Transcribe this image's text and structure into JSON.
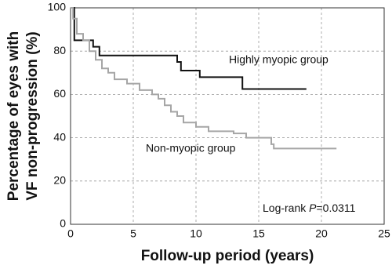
{
  "chart_data": {
    "type": "step",
    "xlabel": "Follow-up period (years)",
    "ylabel": [
      "Percentage of eyes with",
      "VF non-progression (%)"
    ],
    "xlim": [
      0,
      25
    ],
    "xticks": [
      0,
      5,
      10,
      15,
      20,
      25
    ],
    "ylim": [
      0,
      100
    ],
    "yticks": [
      0,
      20,
      40,
      60,
      80,
      100
    ],
    "grid": true,
    "series": [
      {
        "name": "Highly myopic group",
        "color": "#111111",
        "x": [
          0,
          0.3,
          1.8,
          2.3,
          8.5,
          8.8,
          10.3,
          13.7,
          18.8
        ],
        "values": [
          100,
          85,
          82,
          78,
          75,
          71,
          68,
          62.5,
          62.5
        ]
      },
      {
        "name": "Non-myopic group",
        "color": "#a6a6a6",
        "x": [
          0,
          0.2,
          0.5,
          1,
          1.5,
          2,
          2.5,
          3,
          3.5,
          4.5,
          5.5,
          6.5,
          7,
          7.5,
          8,
          8.5,
          9,
          10,
          11,
          13,
          14,
          16,
          16.2,
          21.2
        ],
        "values": [
          100,
          95,
          88,
          85,
          80,
          76,
          72,
          70,
          67,
          65,
          62,
          60,
          58,
          55,
          52,
          50,
          47,
          45,
          43,
          42,
          40,
          37,
          35,
          35
        ]
      }
    ],
    "annotation": {
      "before": "Log-rank ",
      "italic": "P",
      "after": "=0.0311"
    }
  }
}
